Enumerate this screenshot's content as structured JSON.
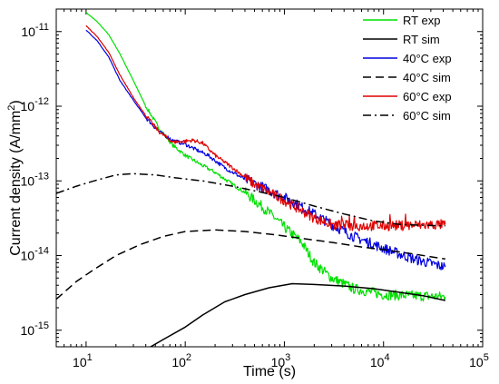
{
  "chart_data": {
    "type": "line",
    "x_scale": "log",
    "y_scale": "log",
    "xlim": [
      5,
      100000
    ],
    "ylim": [
      6e-16,
      2e-11
    ],
    "xlabel": "Time (s)",
    "ylabel_parts": [
      "Current density (A/mm",
      "2",
      ")"
    ],
    "x_ticks": [
      {
        "value": 10,
        "base": "10",
        "exp": "1"
      },
      {
        "value": 100,
        "base": "10",
        "exp": "2"
      },
      {
        "value": 1000,
        "base": "10",
        "exp": "3"
      },
      {
        "value": 10000,
        "base": "10",
        "exp": "4"
      },
      {
        "value": 100000,
        "base": "10",
        "exp": "5"
      }
    ],
    "y_ticks": [
      {
        "value": 1e-15,
        "base": "10",
        "exp": "-15"
      },
      {
        "value": 1e-14,
        "base": "10",
        "exp": "-14"
      },
      {
        "value": 1e-13,
        "base": "10",
        "exp": "-13"
      },
      {
        "value": 1e-12,
        "base": "10",
        "exp": "-12"
      },
      {
        "value": 1e-11,
        "base": "10",
        "exp": "-11"
      }
    ],
    "grid": false,
    "legend_position": "top-right",
    "series": [
      {
        "name": "RT exp",
        "color": "#00e000",
        "dash": "solid",
        "noisy": true,
        "points": [
          [
            10,
            1.8e-11
          ],
          [
            13,
            1.35e-11
          ],
          [
            17,
            9e-12
          ],
          [
            22,
            5e-12
          ],
          [
            30,
            2.2e-12
          ],
          [
            40,
            1e-12
          ],
          [
            55,
            5e-13
          ],
          [
            75,
            3e-13
          ],
          [
            100,
            2.2e-13
          ],
          [
            150,
            1.6e-13
          ],
          [
            200,
            1.3e-13
          ],
          [
            300,
            9e-14
          ],
          [
            400,
            7e-14
          ],
          [
            600,
            4.5e-14
          ],
          [
            800,
            3.2e-14
          ],
          [
            1000,
            2.4e-14
          ],
          [
            1500,
            1.5e-14
          ],
          [
            2000,
            8e-15
          ],
          [
            3000,
            5e-15
          ],
          [
            5000,
            3.6e-15
          ],
          [
            10000,
            3e-15
          ],
          [
            20000,
            2.9e-15
          ],
          [
            42000,
            2.8e-15
          ]
        ]
      },
      {
        "name": "RT sim",
        "color": "#000000",
        "dash": "solid",
        "noisy": false,
        "points": [
          [
            40,
            5.5e-16
          ],
          [
            60,
            7.5e-16
          ],
          [
            100,
            1.1e-15
          ],
          [
            150,
            1.6e-15
          ],
          [
            250,
            2.4e-15
          ],
          [
            400,
            3e-15
          ],
          [
            700,
            3.7e-15
          ],
          [
            1200,
            4.2e-15
          ],
          [
            2000,
            4.1e-15
          ],
          [
            4000,
            3.9e-15
          ],
          [
            8000,
            3.6e-15
          ],
          [
            15000,
            3.2e-15
          ],
          [
            25000,
            2.9e-15
          ],
          [
            42000,
            2.5e-15
          ]
        ]
      },
      {
        "name": "40°C exp",
        "color": "#0000e0",
        "dash": "solid",
        "noisy": true,
        "points": [
          [
            10,
            1.05e-11
          ],
          [
            13,
            7.5e-12
          ],
          [
            17,
            4.5e-12
          ],
          [
            22,
            2.2e-12
          ],
          [
            30,
            1.2e-12
          ],
          [
            40,
            7e-13
          ],
          [
            55,
            4.5e-13
          ],
          [
            75,
            3.5e-13
          ],
          [
            100,
            3.1e-13
          ],
          [
            130,
            2.6e-13
          ],
          [
            170,
            2.2e-13
          ],
          [
            250,
            1.5e-13
          ],
          [
            400,
            1.05e-13
          ],
          [
            700,
            7.5e-14
          ],
          [
            1000,
            6e-14
          ],
          [
            2000,
            3.6e-14
          ],
          [
            3000,
            2.6e-14
          ],
          [
            5000,
            1.8e-14
          ],
          [
            10000,
            1.25e-14
          ],
          [
            20000,
            9e-15
          ],
          [
            42000,
            7e-15
          ]
        ]
      },
      {
        "name": "40°C sim",
        "color": "#000000",
        "dash": "dashed",
        "noisy": false,
        "points": [
          [
            5,
            2.6e-15
          ],
          [
            8,
            4.5e-15
          ],
          [
            12,
            6.5e-15
          ],
          [
            20,
            1e-14
          ],
          [
            35,
            1.4e-14
          ],
          [
            60,
            1.8e-14
          ],
          [
            100,
            2.1e-14
          ],
          [
            200,
            2.2e-14
          ],
          [
            400,
            2.1e-14
          ],
          [
            800,
            1.9e-14
          ],
          [
            1500,
            1.7e-14
          ],
          [
            3000,
            1.5e-14
          ],
          [
            6000,
            1.3e-14
          ],
          [
            10000,
            1.2e-14
          ],
          [
            20000,
            1.05e-14
          ],
          [
            42000,
            9e-15
          ]
        ]
      },
      {
        "name": "60°C exp",
        "color": "#e00000",
        "dash": "solid",
        "noisy": true,
        "points": [
          [
            10,
            1.2e-11
          ],
          [
            13,
            8.5e-12
          ],
          [
            17,
            5.2e-12
          ],
          [
            22,
            2.6e-12
          ],
          [
            30,
            1.3e-12
          ],
          [
            40,
            7.5e-13
          ],
          [
            55,
            4.5e-13
          ],
          [
            75,
            3.3e-13
          ],
          [
            100,
            3.4e-13
          ],
          [
            120,
            3.5e-13
          ],
          [
            150,
            3.2e-13
          ],
          [
            200,
            2.2e-13
          ],
          [
            300,
            1.5e-13
          ],
          [
            500,
            9e-14
          ],
          [
            700,
            7e-14
          ],
          [
            1000,
            5.5e-14
          ],
          [
            1500,
            4e-14
          ],
          [
            2000,
            3.2e-14
          ],
          [
            3000,
            2.6e-14
          ],
          [
            5000,
            2.5e-14
          ],
          [
            10000,
            2.5e-14
          ],
          [
            20000,
            2.55e-14
          ],
          [
            42000,
            2.6e-14
          ]
        ]
      },
      {
        "name": "60°C sim",
        "color": "#000000",
        "dash": "dashdot",
        "noisy": false,
        "points": [
          [
            5,
            6.8e-14
          ],
          [
            8,
            8.5e-14
          ],
          [
            12,
            1e-13
          ],
          [
            20,
            1.2e-13
          ],
          [
            30,
            1.25e-13
          ],
          [
            50,
            1.2e-13
          ],
          [
            80,
            1.1e-13
          ],
          [
            150,
            1e-13
          ],
          [
            300,
            8.5e-14
          ],
          [
            600,
            7e-14
          ],
          [
            1000,
            6e-14
          ],
          [
            2000,
            4.6e-14
          ],
          [
            4000,
            3.6e-14
          ],
          [
            8000,
            2.9e-14
          ],
          [
            15000,
            2.6e-14
          ],
          [
            42000,
            2.5e-14
          ]
        ]
      }
    ]
  }
}
